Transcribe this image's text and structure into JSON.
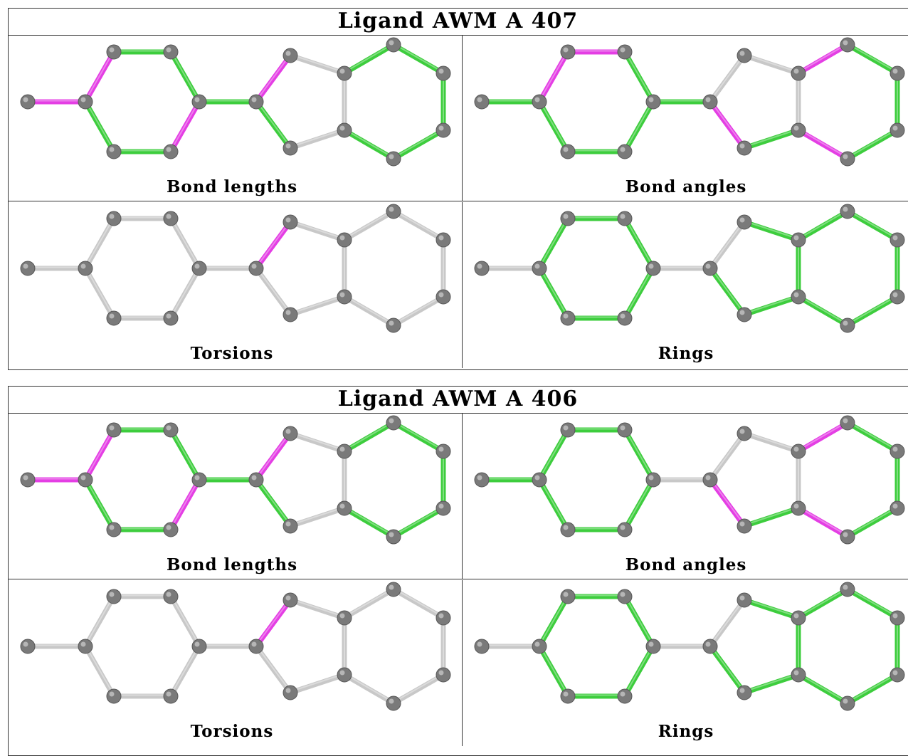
{
  "colors": {
    "outlier_bond": "#e43ee4",
    "good_bond": "#3dcd3d",
    "neutral_bond": "#c8c8c8",
    "atom": "#7a7a7a"
  },
  "icons": {
    "atom": "grey-sphere",
    "bond": "cylinder"
  },
  "ligands": [
    {
      "title": "Ligand AWM A 407",
      "panels": [
        {
          "caption": "Bond lengths",
          "bond_colors": [
            "magenta",
            "magenta",
            "green",
            "green",
            "magenta",
            "green",
            "green",
            "green",
            "magenta",
            "grey",
            "grey",
            "grey",
            "green",
            "green",
            "green",
            "green",
            "green",
            "green"
          ]
        },
        {
          "caption": "Bond angles",
          "bond_colors": [
            "green",
            "magenta",
            "magenta",
            "green",
            "green",
            "green",
            "green",
            "green",
            "grey",
            "grey",
            "grey",
            "green",
            "magenta",
            "magenta",
            "green",
            "green",
            "green",
            "magenta"
          ]
        },
        {
          "caption": "Torsions",
          "bond_colors": [
            "grey",
            "grey",
            "grey",
            "grey",
            "grey",
            "grey",
            "grey",
            "grey",
            "magenta",
            "grey",
            "grey",
            "grey",
            "grey",
            "grey",
            "grey",
            "grey",
            "grey",
            "grey"
          ]
        },
        {
          "caption": "Rings",
          "bond_colors": [
            "grey",
            "green",
            "green",
            "green",
            "green",
            "green",
            "green",
            "grey",
            "grey",
            "green",
            "green",
            "green",
            "green",
            "green",
            "green",
            "green",
            "green",
            "green"
          ]
        }
      ]
    },
    {
      "title": "Ligand AWM A 406",
      "panels": [
        {
          "caption": "Bond lengths",
          "bond_colors": [
            "magenta",
            "magenta",
            "green",
            "green",
            "magenta",
            "green",
            "green",
            "green",
            "magenta",
            "grey",
            "grey",
            "grey",
            "green",
            "green",
            "green",
            "green",
            "green",
            "green"
          ]
        },
        {
          "caption": "Bond angles",
          "bond_colors": [
            "green",
            "green",
            "green",
            "green",
            "green",
            "green",
            "green",
            "grey",
            "grey",
            "grey",
            "grey",
            "green",
            "magenta",
            "magenta",
            "green",
            "green",
            "green",
            "magenta"
          ]
        },
        {
          "caption": "Torsions",
          "bond_colors": [
            "grey",
            "grey",
            "grey",
            "grey",
            "grey",
            "grey",
            "grey",
            "grey",
            "magenta",
            "grey",
            "grey",
            "grey",
            "grey",
            "grey",
            "grey",
            "grey",
            "grey",
            "grey"
          ]
        },
        {
          "caption": "Rings",
          "bond_colors": [
            "grey",
            "green",
            "green",
            "green",
            "green",
            "green",
            "green",
            "grey",
            "grey",
            "green",
            "green",
            "green",
            "green",
            "green",
            "green",
            "green",
            "green",
            "green"
          ]
        }
      ]
    }
  ]
}
